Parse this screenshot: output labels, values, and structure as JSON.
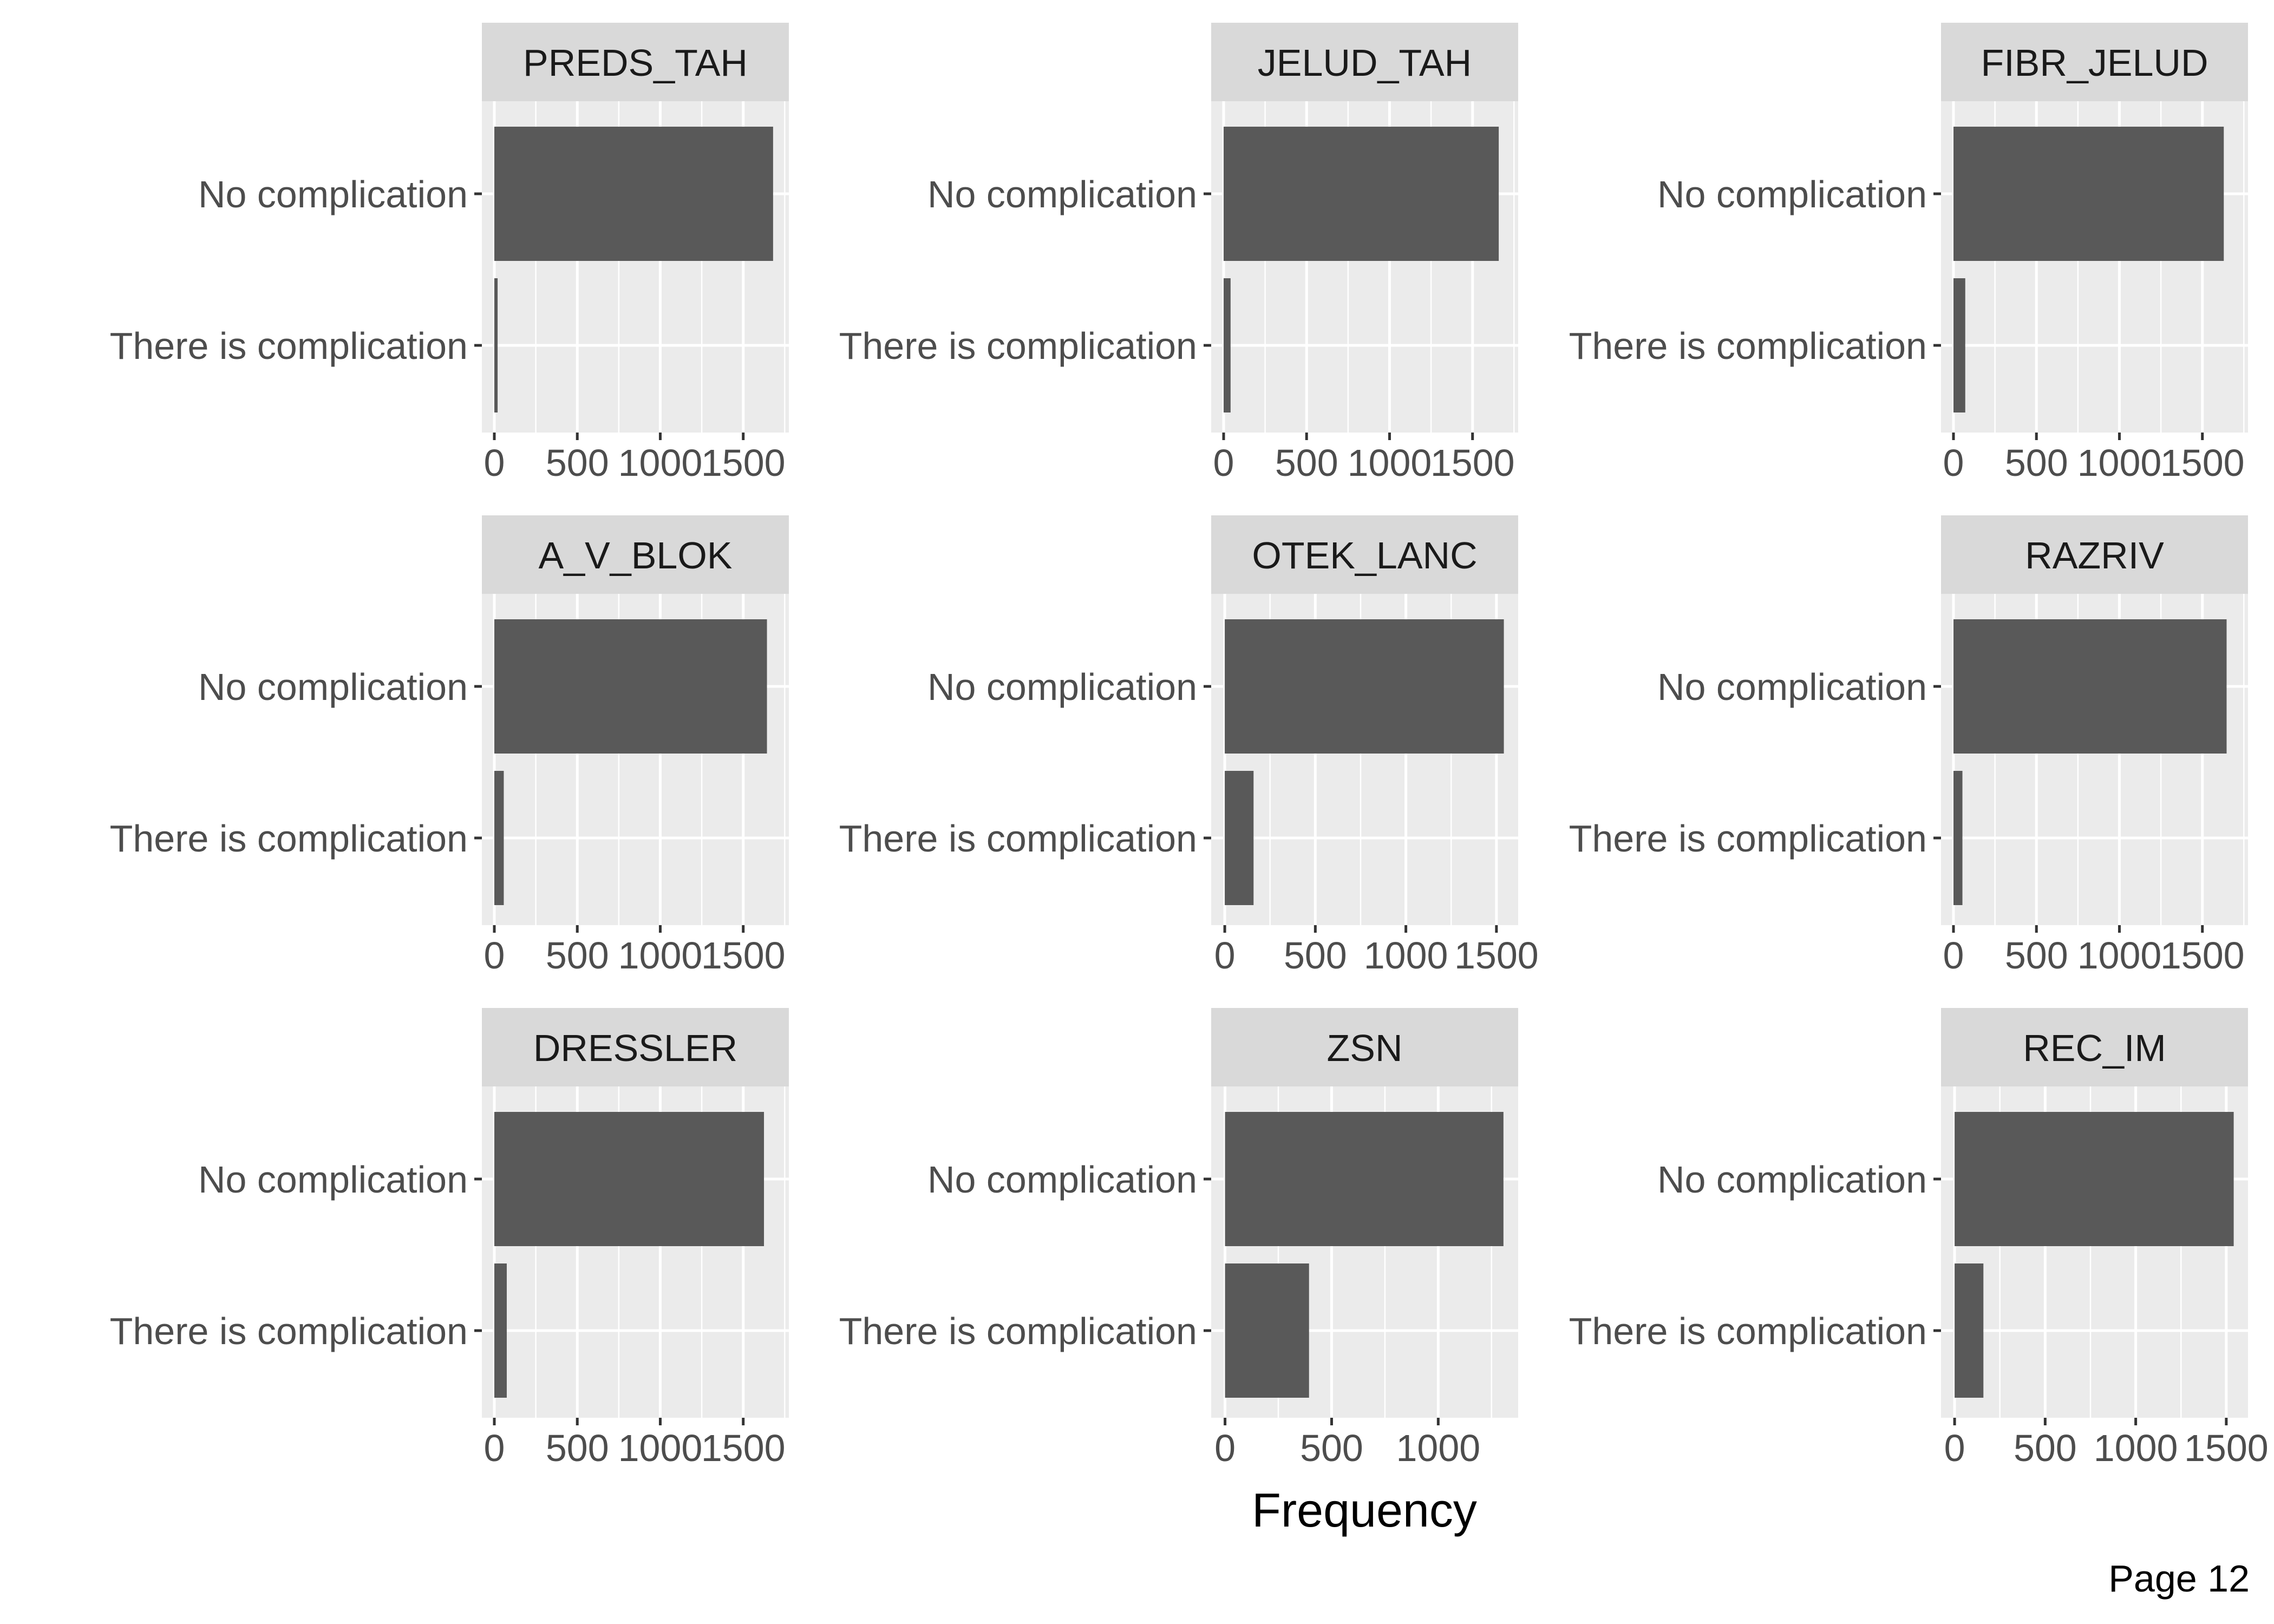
{
  "chart_data": {
    "type": "bar",
    "orientation": "horizontal",
    "facet_layout": "3x3",
    "categories": [
      "No complication",
      "There is complication"
    ],
    "xlabel": "Frequency",
    "ylabel": "",
    "grid": true,
    "colors": {
      "bar": "#595959",
      "panel": "#ebebeb",
      "strip": "#d9d9d9",
      "gridline": "#ffffff"
    },
    "panels": [
      {
        "title": "PREDS_TAH",
        "values": [
          1680,
          20
        ],
        "xlim": [
          -75,
          1775
        ],
        "ticks": [
          "0",
          "500",
          "1000",
          "1500"
        ],
        "tick_values": [
          0,
          500,
          1000,
          1500
        ]
      },
      {
        "title": "JELUD_TAH",
        "values": [
          1658,
          42
        ],
        "xlim": [
          -75,
          1775
        ],
        "ticks": [
          "0",
          "500",
          "1000",
          "1500"
        ],
        "tick_values": [
          0,
          500,
          1000,
          1500
        ]
      },
      {
        "title": "FIBR_JELUD",
        "values": [
          1629,
          71
        ],
        "xlim": [
          -75,
          1775
        ],
        "ticks": [
          "0",
          "500",
          "1000",
          "1500"
        ],
        "tick_values": [
          0,
          500,
          1000,
          1500
        ]
      },
      {
        "title": "A_V_BLOK",
        "values": [
          1643,
          57
        ],
        "xlim": [
          -75,
          1775
        ],
        "ticks": [
          "0",
          "500",
          "1000",
          "1500"
        ],
        "tick_values": [
          0,
          500,
          1000,
          1500
        ]
      },
      {
        "title": "OTEK_LANC",
        "values": [
          1541,
          159
        ],
        "xlim": [
          -75,
          1620
        ],
        "ticks": [
          "0",
          "500",
          "1000",
          "1500"
        ],
        "tick_values": [
          0,
          500,
          1000,
          1500
        ]
      },
      {
        "title": "RAZRIV",
        "values": [
          1646,
          54
        ],
        "xlim": [
          -75,
          1775
        ],
        "ticks": [
          "0",
          "500",
          "1000",
          "1500"
        ],
        "tick_values": [
          0,
          500,
          1000,
          1500
        ]
      },
      {
        "title": "DRESSLER",
        "values": [
          1625,
          75
        ],
        "xlim": [
          -75,
          1775
        ],
        "ticks": [
          "0",
          "500",
          "1000",
          "1500"
        ],
        "tick_values": [
          0,
          500,
          1000,
          1500
        ]
      },
      {
        "title": "ZSN",
        "values": [
          1306,
          394
        ],
        "xlim": [
          -65,
          1375
        ],
        "ticks": [
          "0",
          "500",
          "1000"
        ],
        "tick_values": [
          0,
          500,
          1000
        ]
      },
      {
        "title": "REC_IM",
        "values": [
          1541,
          159
        ],
        "xlim": [
          -75,
          1620
        ],
        "ticks": [
          "0",
          "500",
          "1000",
          "1500"
        ],
        "tick_values": [
          0,
          500,
          1000,
          1500
        ]
      }
    ]
  },
  "footer": {
    "page_label": "Page 12"
  }
}
